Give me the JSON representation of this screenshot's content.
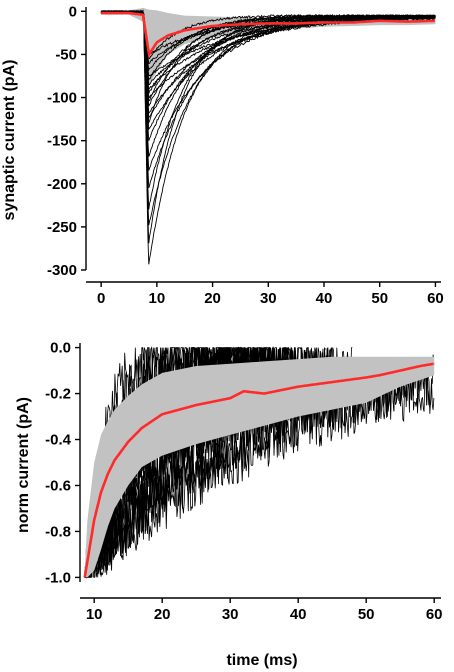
{
  "colors": {
    "mean_trace": "#ff2a2a",
    "sd_band": "#c2c2c2",
    "individual_traces": "#000000",
    "axes": "#000000"
  },
  "chart_data": [
    {
      "type": "line",
      "title": "",
      "xlabel": "",
      "ylabel": "synaptic current (pA)",
      "xlim": [
        -2,
        61
      ],
      "ylim": [
        -300,
        5
      ],
      "xticks": [
        "0",
        "10",
        "20",
        "30",
        "40",
        "50",
        "60"
      ],
      "yticks": [
        "0",
        "-50",
        "-100",
        "-150",
        "-200",
        "-250",
        "-300"
      ],
      "grid": false,
      "legend": "none",
      "onset_ms": 7.5,
      "mean_peak_time_ms": 8.6,
      "series": [
        {
          "role": "mean",
          "color": "#ff2a2a",
          "x": [
            0,
            5,
            7.5,
            8.6,
            10,
            12,
            15,
            20,
            25,
            30,
            35,
            40,
            45,
            50,
            55,
            60
          ],
          "y": [
            -2,
            -2,
            -4,
            -50,
            -36,
            -28,
            -22,
            -17,
            -15,
            -14,
            -14,
            -13,
            -13,
            -11,
            -12,
            -11
          ]
        },
        {
          "role": "sd_band",
          "color": "#c2c2c2",
          "x": [
            0,
            5,
            7.5,
            8.6,
            10,
            12,
            15,
            20,
            25,
            30,
            35,
            40,
            45,
            50,
            55,
            60
          ],
          "upper": [
            1,
            1,
            4,
            2,
            1,
            -2,
            -5,
            -6,
            -7,
            -8,
            -8,
            -8,
            -8,
            -8,
            -8,
            -8
          ],
          "lower": [
            -4,
            -4,
            -12,
            -85,
            -70,
            -50,
            -38,
            -30,
            -26,
            -22,
            -20,
            -18,
            -17,
            -16,
            -16,
            -15
          ]
        },
        {
          "role": "individual_traces",
          "color": "#000000",
          "onset_ms": 7.6,
          "peaks_pA": [
            -295,
            -270,
            -250,
            -230,
            -205,
            -185,
            -170,
            -150,
            -138,
            -130,
            -125,
            -118,
            -110,
            -105,
            -100,
            -95,
            -90,
            -85,
            -80,
            -75,
            -68,
            -60,
            -55,
            -50
          ],
          "decay_tau_ms": [
            7,
            6,
            8,
            6.5,
            9,
            10,
            8,
            9,
            11,
            6,
            10,
            12,
            8,
            7,
            14,
            9,
            13,
            11,
            7,
            15,
            8,
            10,
            6,
            12
          ]
        }
      ]
    },
    {
      "type": "line",
      "title": "",
      "xlabel": "time (ms)",
      "ylabel": "norm current (pA)",
      "xlim": [
        8.5,
        61
      ],
      "ylim": [
        -1.02,
        0.02
      ],
      "xticks": [
        "10",
        "20",
        "30",
        "40",
        "50",
        "60"
      ],
      "yticks": [
        "0.0",
        "-0.2",
        "-0.4",
        "-0.6",
        "-0.8",
        "-1.0"
      ],
      "grid": false,
      "legend": "none",
      "series": [
        {
          "role": "mean",
          "color": "#ff2a2a",
          "x": [
            8.6,
            9,
            10,
            11,
            12,
            13,
            15,
            17,
            20,
            25,
            30,
            32,
            35,
            40,
            45,
            50,
            52,
            55,
            58,
            60
          ],
          "y": [
            -1.0,
            -0.93,
            -0.75,
            -0.63,
            -0.55,
            -0.49,
            -0.41,
            -0.35,
            -0.29,
            -0.25,
            -0.22,
            -0.19,
            -0.2,
            -0.17,
            -0.15,
            -0.13,
            -0.12,
            -0.1,
            -0.08,
            -0.07
          ]
        },
        {
          "role": "sd_band",
          "color": "#c2c2c2",
          "x": [
            8.6,
            9,
            10,
            11,
            12,
            13,
            15,
            17,
            20,
            25,
            30,
            35,
            40,
            45,
            50,
            55,
            60
          ],
          "upper": [
            -0.97,
            -0.75,
            -0.5,
            -0.38,
            -0.32,
            -0.27,
            -0.21,
            -0.16,
            -0.11,
            -0.08,
            -0.07,
            -0.06,
            -0.05,
            -0.04,
            -0.04,
            -0.04,
            -0.04
          ],
          "lower": [
            -1.0,
            -1.0,
            -0.97,
            -0.88,
            -0.78,
            -0.7,
            -0.6,
            -0.52,
            -0.47,
            -0.42,
            -0.38,
            -0.34,
            -0.3,
            -0.27,
            -0.24,
            -0.17,
            -0.12
          ]
        },
        {
          "role": "individual_traces",
          "color": "#000000",
          "x_end_ms": [
            30,
            32,
            34,
            36,
            36,
            38,
            40,
            40,
            42,
            44,
            45,
            46,
            48,
            50,
            52,
            55,
            60,
            60
          ],
          "decay_tau_ms": [
            3,
            4,
            5,
            6,
            7,
            8,
            9,
            10,
            11,
            12,
            14,
            15,
            17,
            19,
            21,
            24,
            27,
            30
          ],
          "noise_amplitude": 0.12
        }
      ]
    }
  ]
}
